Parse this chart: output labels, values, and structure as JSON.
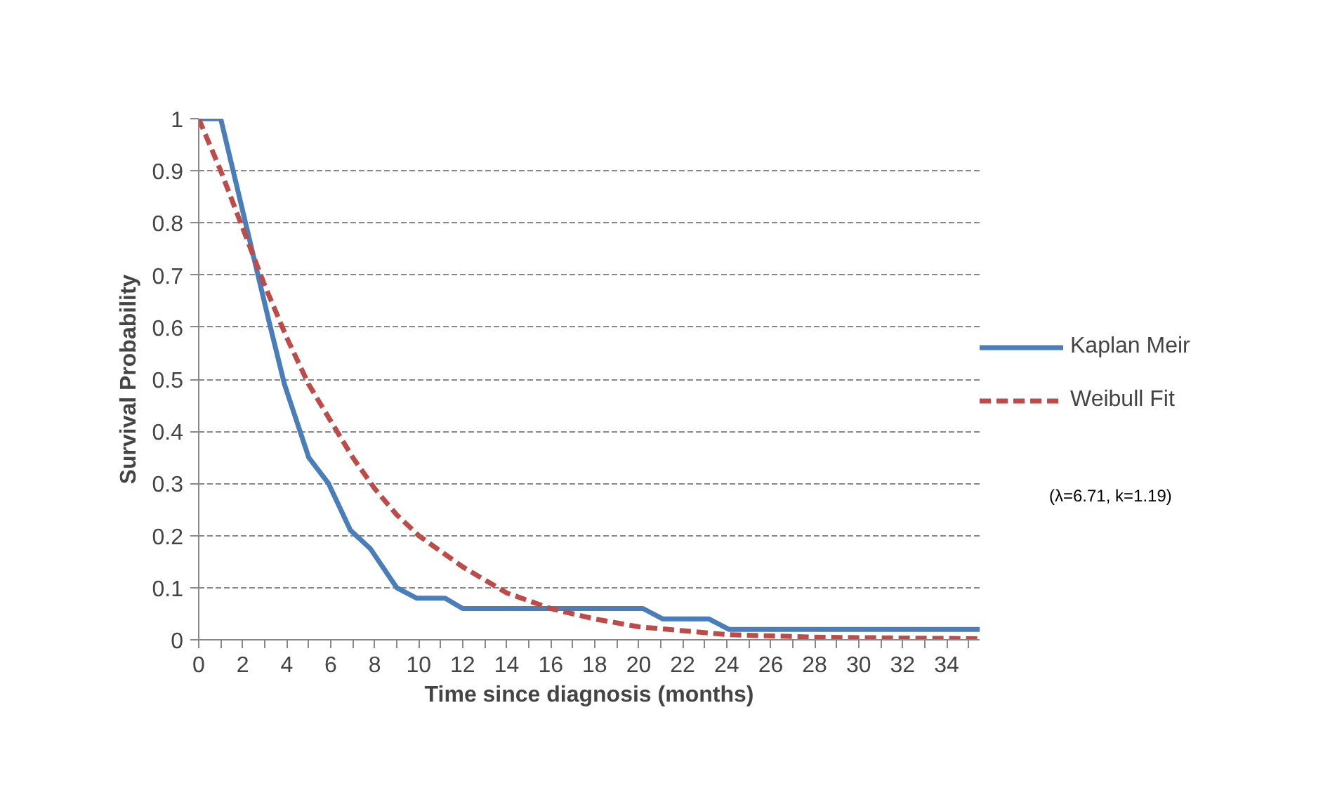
{
  "chart_data": {
    "type": "line",
    "xlabel": "Time since diagnosis (months)",
    "ylabel": "Survival Probability",
    "xlim": [
      0,
      35.5
    ],
    "ylim": [
      0,
      1
    ],
    "xticks": [
      0,
      {
        "value": 1,
        "label": null
      },
      2,
      {
        "value": 3,
        "label": null
      },
      4,
      {
        "value": 5,
        "label": null
      },
      6,
      {
        "value": 7,
        "label": null
      },
      8,
      {
        "value": 9,
        "label": null
      },
      10,
      {
        "value": 11,
        "label": null
      },
      12,
      {
        "value": 13,
        "label": null
      },
      14,
      {
        "value": 15,
        "label": null
      },
      16,
      {
        "value": 17,
        "label": null
      },
      18,
      {
        "value": 19,
        "label": null
      },
      20,
      {
        "value": 21,
        "label": null
      },
      22,
      {
        "value": 23,
        "label": null
      },
      24,
      {
        "value": 25,
        "label": null
      },
      26,
      {
        "value": 27,
        "label": null
      },
      28,
      {
        "value": 29,
        "label": null
      },
      30,
      {
        "value": 31,
        "label": null
      },
      32,
      {
        "value": 33,
        "label": null
      },
      34,
      {
        "value": 35,
        "label": null
      }
    ],
    "yticks": [
      0,
      0.1,
      0.2,
      0.3,
      0.4,
      0.5,
      0.6,
      0.7,
      0.8,
      0.9,
      1
    ],
    "grid": "y",
    "legend": "right",
    "annotations": [
      "(λ=6.71, k=1.19)"
    ],
    "series": [
      {
        "name": "Kaplan Meir",
        "color": "#4a7ebb",
        "line_style": "solid",
        "x": [
          0,
          1,
          3.2,
          3.9,
          5.0,
          5.9,
          6.9,
          7.8,
          9.0,
          9.9,
          11.2,
          12.0,
          20.2,
          21.1,
          23.2,
          24.1,
          35.5
        ],
        "values": [
          1,
          1,
          0.61,
          0.49,
          0.35,
          0.3,
          0.21,
          0.175,
          0.1,
          0.08,
          0.08,
          0.06,
          0.06,
          0.04,
          0.04,
          0.02,
          0.02
        ]
      },
      {
        "name": "Weibull Fit",
        "color": "#be4b48",
        "line_style": "dashed",
        "x": [
          0,
          1,
          2,
          3,
          4,
          5,
          6,
          7,
          8,
          9,
          10,
          12,
          14,
          16,
          18,
          20,
          24,
          28,
          35.5
        ],
        "values": [
          1,
          0.9,
          0.79,
          0.68,
          0.58,
          0.49,
          0.42,
          0.35,
          0.29,
          0.24,
          0.2,
          0.14,
          0.09,
          0.06,
          0.04,
          0.025,
          0.01,
          0.005,
          0.002
        ]
      }
    ]
  }
}
